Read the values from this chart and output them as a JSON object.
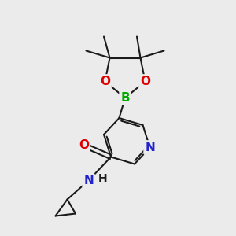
{
  "background_color": "#ebebeb",
  "bond_color": "#1a1a1a",
  "atom_colors": {
    "O": "#dd0000",
    "N": "#2222cc",
    "B": "#00aa00",
    "C": "#1a1a1a"
  },
  "line_width": 1.5,
  "font_size": 11,
  "figsize": [
    3.0,
    3.0
  ],
  "dpi": 100
}
